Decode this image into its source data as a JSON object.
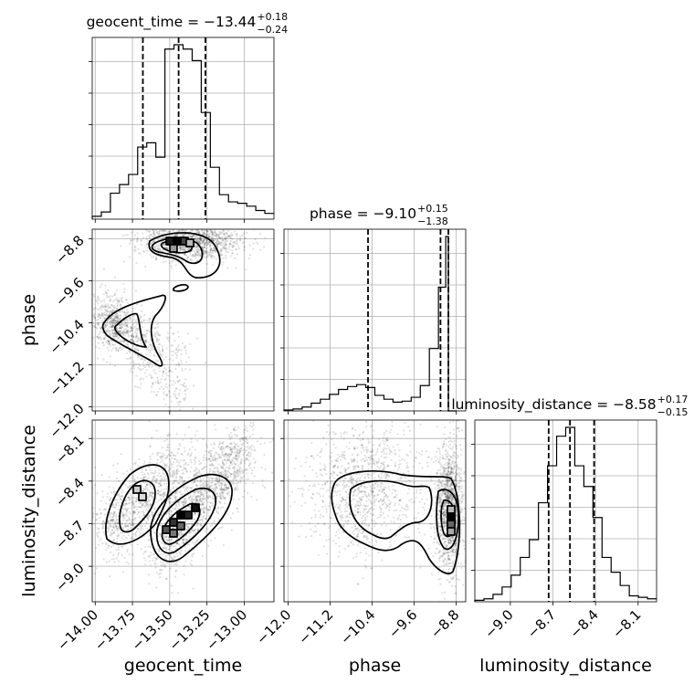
{
  "chart_data": {
    "type": "corner",
    "params": [
      "geocent_time",
      "phase",
      "luminosity_distance"
    ],
    "titles": [
      {
        "param": "geocent_time",
        "text": "geocent_time = −13.44",
        "plus": "+0.18",
        "minus": "−0.24"
      },
      {
        "param": "phase",
        "text": "phase = −9.10",
        "plus": "+0.15",
        "minus": "−1.38"
      },
      {
        "param": "luminosity_distance",
        "text": "luminosity_distance = −8.58",
        "plus": "+0.17",
        "minus": "−0.15"
      }
    ],
    "axis_labels": {
      "x": [
        "geocent_time",
        "phase",
        "luminosity_distance"
      ],
      "y": [
        "phase",
        "luminosity_distance"
      ]
    },
    "ranges": {
      "geocent_time": [
        -14.02,
        -12.8
      ],
      "phase": [
        -12.08,
        -8.62
      ],
      "luminosity_distance": [
        -9.25,
        -7.97
      ]
    },
    "ticks": {
      "geocent_time": {
        "values": [
          -14.0,
          -13.75,
          -13.5,
          -13.25,
          -13.0
        ],
        "labels": [
          "−14.00",
          "−13.75",
          "−13.50",
          "−13.25",
          "−13.00"
        ]
      },
      "phase": {
        "values": [
          -12.0,
          -11.2,
          -10.4,
          -9.6,
          -8.8
        ],
        "labels": [
          "−12.0",
          "−11.2",
          "−10.4",
          "−9.6",
          "−8.8"
        ]
      },
      "luminosity_distance": {
        "values": [
          -9.0,
          -8.7,
          -8.4,
          -8.1
        ],
        "labels": [
          "−9.0",
          "−8.7",
          "−8.4",
          "−8.1"
        ]
      }
    },
    "quantiles": {
      "geocent_time": [
        -13.68,
        -13.44,
        -13.26
      ],
      "phase": [
        -10.48,
        -9.1,
        -8.95
      ],
      "luminosity_distance": [
        -8.73,
        -8.58,
        -8.41
      ]
    },
    "histograms": {
      "geocent_time": {
        "edges": [
          -14.02,
          -13.959,
          -13.898,
          -13.837,
          -13.776,
          -13.715,
          -13.654,
          -13.593,
          -13.532,
          -13.471,
          -13.41,
          -13.349,
          -13.288,
          -13.227,
          -13.166,
          -13.105,
          -13.044,
          -12.983,
          -12.922,
          -12.861,
          -12.8
        ],
        "counts": [
          2,
          5,
          18,
          24,
          31,
          50,
          53,
          43,
          118,
          121,
          118,
          110,
          74,
          36,
          17,
          12,
          11,
          9,
          6,
          4
        ]
      },
      "phase": {
        "edges": [
          -12.08,
          -11.907,
          -11.734,
          -11.561,
          -11.388,
          -11.215,
          -11.042,
          -10.869,
          -10.696,
          -10.523,
          -10.35,
          -10.177,
          -10.004,
          -9.831,
          -9.658,
          -9.485,
          -9.312,
          -9.139,
          -9.0,
          -8.95,
          -8.8
        ],
        "counts": [
          1,
          2,
          4,
          8,
          12,
          17,
          22,
          25,
          27,
          24,
          16,
          12,
          9,
          10,
          14,
          26,
          64,
          127,
          179,
          0
        ]
      },
      "luminosity_distance": {
        "edges": [
          -9.25,
          -9.186,
          -9.122,
          -9.058,
          -8.994,
          -8.93,
          -8.866,
          -8.802,
          -8.738,
          -8.674,
          -8.61,
          -8.546,
          -8.482,
          -8.418,
          -8.354,
          -8.29,
          -8.226,
          -8.162,
          -8.098,
          -8.034,
          -7.97
        ],
        "counts": [
          1,
          2,
          5,
          10,
          18,
          30,
          42,
          67,
          92,
          112,
          118,
          92,
          78,
          57,
          30,
          20,
          11,
          4,
          3,
          2
        ]
      }
    },
    "grid": true
  }
}
